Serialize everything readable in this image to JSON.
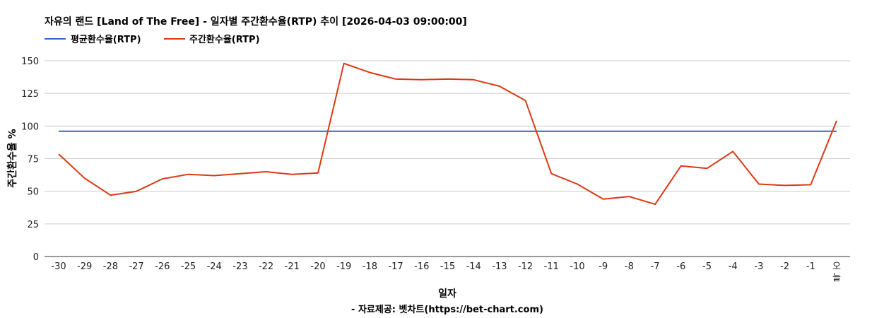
{
  "chart_data": {
    "type": "line",
    "title": "자유의 랜드 [Land of The Free] - 일자별 주간환수율(RTP) 추이 [2026-04-03 09:00:00]",
    "xlabel": "일자",
    "ylabel": "주간환수율 %",
    "source": "- 자료제공: 벳차트(https://bet-chart.com)",
    "categories": [
      "-30",
      "-29",
      "-28",
      "-27",
      "-26",
      "-25",
      "-24",
      "-23",
      "-22",
      "-21",
      "-20",
      "-19",
      "-18",
      "-17",
      "-16",
      "-15",
      "-14",
      "-13",
      "-12",
      "-11",
      "-10",
      "-9",
      "-8",
      "-7",
      "-6",
      "-5",
      "-4",
      "-3",
      "-2",
      "-1",
      "오늘"
    ],
    "ylim": [
      0,
      150
    ],
    "yticks": [
      0,
      25,
      50,
      75,
      100,
      125,
      150
    ],
    "grid": true,
    "legend_position": "top-left",
    "series": [
      {
        "name": "평균환수율(RTP)",
        "color": "#3366cc",
        "values": [
          96,
          96,
          96,
          96,
          96,
          96,
          96,
          96,
          96,
          96,
          96,
          96,
          96,
          96,
          96,
          96,
          96,
          96,
          96,
          96,
          96,
          96,
          96,
          96,
          96,
          96,
          96,
          96,
          96,
          96,
          96
        ]
      },
      {
        "name": "주간환수율(RTP)",
        "color": "#dc3912",
        "values": [
          78.5,
          60,
          47,
          50,
          59.5,
          63,
          62,
          63.5,
          65,
          63,
          64,
          148,
          141,
          136,
          135.5,
          136,
          135.5,
          130.5,
          119.5,
          63.5,
          55.5,
          44,
          46,
          40,
          69.5,
          67.5,
          80.5,
          55.5,
          54.5,
          55,
          104
        ]
      }
    ]
  }
}
